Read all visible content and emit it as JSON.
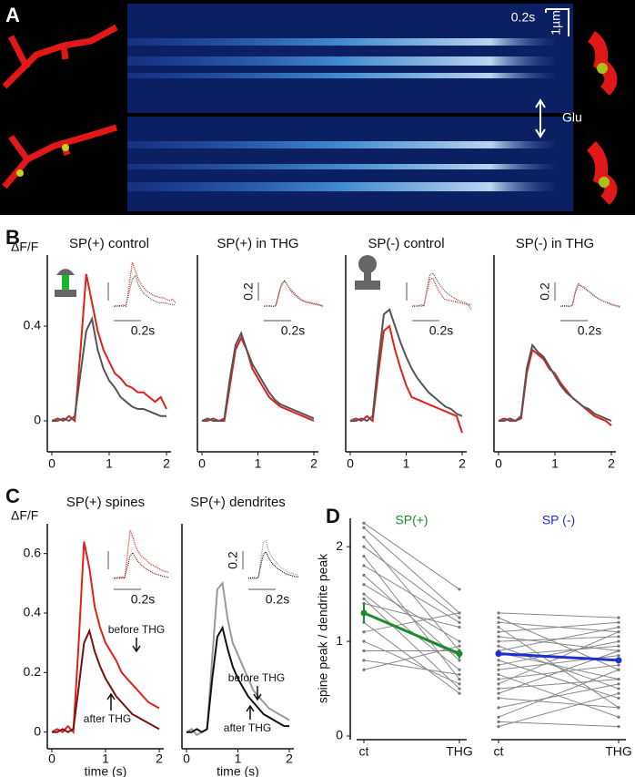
{
  "panel_labels": [
    "A",
    "B",
    "C",
    "D"
  ],
  "panel_a": {
    "time_scale": "0.2s",
    "length_scale": "1µm",
    "stimulus": "Glu"
  },
  "chart_data": [
    {
      "type": "line",
      "title": "SP(+) control",
      "ylabel": "ΔF/F",
      "x": [
        0,
        0.1,
        0.2,
        0.3,
        0.4,
        0.5,
        0.6,
        0.7,
        0.8,
        0.9,
        1,
        1.1,
        1.2,
        1.3,
        1.4,
        1.5,
        1.6,
        1.7,
        1.8,
        1.9,
        2
      ],
      "series": [
        {
          "color": "#e0201b",
          "values": [
            0,
            0.01,
            0,
            0.02,
            0,
            0.3,
            0.62,
            0.5,
            0.38,
            0.3,
            0.25,
            0.2,
            0.18,
            0.15,
            0.14,
            0.12,
            0.12,
            0.1,
            0.08,
            0.1,
            0.05
          ]
        },
        {
          "color": "#555555",
          "values": [
            0,
            0,
            0.01,
            0,
            0.02,
            0.2,
            0.38,
            0.43,
            0.3,
            0.22,
            0.17,
            0.14,
            0.1,
            0.08,
            0.06,
            0.05,
            0.05,
            0.04,
            0.03,
            0.02,
            0.02
          ]
        }
      ],
      "xlim": [
        0,
        2
      ],
      "xticks": [
        0,
        1,
        2
      ],
      "ylim": [
        -0.1,
        0.7
      ],
      "yticks": [
        0,
        0.4
      ],
      "inset": {
        "x_scale": "0.2s"
      }
    },
    {
      "type": "line",
      "title": "SP(+) in THG",
      "x": [
        0,
        0.1,
        0.2,
        0.3,
        0.4,
        0.5,
        0.6,
        0.7,
        0.8,
        0.9,
        1,
        1.1,
        1.2,
        1.3,
        1.4,
        1.5,
        1.6,
        1.7,
        1.8,
        1.9,
        2
      ],
      "series": [
        {
          "color": "#e0201b",
          "values": [
            0,
            0,
            0.01,
            0,
            0,
            0.15,
            0.3,
            0.35,
            0.3,
            0.22,
            0.18,
            0.14,
            0.1,
            0.08,
            0.06,
            0.05,
            0.04,
            0.03,
            0.02,
            0.01,
            0
          ]
        },
        {
          "color": "#555555",
          "values": [
            0,
            0.01,
            0,
            0,
            0.01,
            0.18,
            0.32,
            0.37,
            0.3,
            0.24,
            0.2,
            0.16,
            0.12,
            0.09,
            0.07,
            0.06,
            0.05,
            0.04,
            0.03,
            0.02,
            0.01
          ]
        }
      ],
      "xlim": [
        0,
        2
      ],
      "xticks": [
        0,
        1,
        2
      ],
      "ylim": [
        -0.1,
        0.7
      ],
      "inset": {
        "y_scale": "0.2",
        "x_scale": "0.2s"
      }
    },
    {
      "type": "line",
      "title": "SP(-) control",
      "x": [
        0,
        0.1,
        0.2,
        0.3,
        0.4,
        0.5,
        0.6,
        0.7,
        0.8,
        0.9,
        1,
        1.1,
        1.2,
        1.3,
        1.4,
        1.5,
        1.6,
        1.7,
        1.8,
        1.9,
        2
      ],
      "series": [
        {
          "color": "#e0201b",
          "values": [
            0,
            0.01,
            0,
            0.02,
            0,
            0.2,
            0.38,
            0.4,
            0.3,
            0.22,
            0.15,
            0.1,
            0.09,
            0.08,
            0.07,
            0.06,
            0.05,
            0.04,
            0.03,
            0.02,
            -0.05
          ]
        },
        {
          "color": "#555555",
          "values": [
            0,
            0,
            0.01,
            0,
            0.02,
            0.25,
            0.45,
            0.47,
            0.4,
            0.33,
            0.27,
            0.22,
            0.18,
            0.15,
            0.12,
            0.1,
            0.08,
            0.06,
            0.05,
            0.03,
            0.02
          ]
        }
      ],
      "xlim": [
        0,
        2
      ],
      "xticks": [
        0,
        1,
        2
      ],
      "ylim": [
        -0.1,
        0.7
      ],
      "inset": {
        "x_scale": "0.2s"
      }
    },
    {
      "type": "line",
      "title": "SP(-) in THG",
      "x": [
        0,
        0.1,
        0.2,
        0.3,
        0.4,
        0.5,
        0.6,
        0.7,
        0.8,
        0.9,
        1,
        1.1,
        1.2,
        1.3,
        1.4,
        1.5,
        1.6,
        1.7,
        1.8,
        1.9,
        2
      ],
      "series": [
        {
          "color": "#e0201b",
          "values": [
            0,
            0.01,
            0,
            0,
            0.01,
            0.2,
            0.3,
            0.28,
            0.26,
            0.22,
            0.2,
            0.16,
            0.13,
            0.1,
            0.08,
            0.06,
            0.04,
            0.02,
            0.01,
            0,
            -0.02
          ]
        },
        {
          "color": "#555555",
          "values": [
            0,
            0,
            0.01,
            0,
            0.02,
            0.22,
            0.32,
            0.29,
            0.27,
            0.23,
            0.19,
            0.15,
            0.12,
            0.1,
            0.08,
            0.06,
            0.05,
            0.03,
            0.02,
            0.01,
            0
          ]
        }
      ],
      "xlim": [
        0,
        2
      ],
      "xticks": [
        0,
        1,
        2
      ],
      "ylim": [
        -0.1,
        0.7
      ],
      "inset": {
        "y_scale": "0.2",
        "x_scale": "0.2s"
      }
    },
    {
      "type": "line",
      "title": "SP(+) spines",
      "ylabel": "ΔF/F",
      "xlabel": "time (s)",
      "x": [
        0,
        0.1,
        0.2,
        0.3,
        0.4,
        0.5,
        0.6,
        0.7,
        0.8,
        0.9,
        1,
        1.1,
        1.2,
        1.3,
        1.4,
        1.5,
        1.6,
        1.7,
        1.8,
        1.9,
        2
      ],
      "series": [
        {
          "name": "before THG",
          "color": "#e0201b",
          "values": [
            0,
            0.01,
            0,
            0.02,
            0,
            0.3,
            0.64,
            0.55,
            0.42,
            0.35,
            0.3,
            0.27,
            0.24,
            0.2,
            0.18,
            0.16,
            0.14,
            0.12,
            0.1,
            0.09,
            0.08
          ]
        },
        {
          "name": "after THG",
          "color": "#7a1010",
          "values": [
            0,
            0,
            0.01,
            0,
            0.01,
            0.15,
            0.3,
            0.34,
            0.27,
            0.22,
            0.18,
            0.15,
            0.12,
            0.1,
            0.08,
            0.06,
            0.05,
            0.04,
            0.03,
            0.02,
            0.01
          ]
        }
      ],
      "xlim": [
        0,
        2
      ],
      "xticks": [
        0,
        1,
        2
      ],
      "ylim": [
        -0.05,
        0.7
      ],
      "yticks": [
        0,
        0.2,
        0.4,
        0.6
      ],
      "inset": {
        "x_scale": "0.2s"
      }
    },
    {
      "type": "line",
      "title": "SP(+) dendrites",
      "xlabel": "time (s)",
      "x": [
        0,
        0.1,
        0.2,
        0.3,
        0.4,
        0.5,
        0.6,
        0.7,
        0.8,
        0.9,
        1,
        1.1,
        1.2,
        1.3,
        1.4,
        1.5,
        1.6,
        1.7,
        1.8,
        1.9,
        2
      ],
      "series": [
        {
          "name": "before THG",
          "color": "#999999",
          "values": [
            0,
            0.01,
            -0.01,
            0,
            0.01,
            0.25,
            0.48,
            0.5,
            0.38,
            0.3,
            0.26,
            0.22,
            0.18,
            0.14,
            0.12,
            0.1,
            0.08,
            0.07,
            0.06,
            0.05,
            0.04
          ]
        },
        {
          "name": "after THG",
          "color": "#111111",
          "values": [
            0,
            0,
            0.01,
            0,
            0.01,
            0.18,
            0.32,
            0.35,
            0.28,
            0.22,
            0.18,
            0.15,
            0.12,
            0.1,
            0.08,
            0.06,
            0.05,
            0.04,
            0.03,
            0.02,
            0.02
          ]
        }
      ],
      "xlim": [
        0,
        2
      ],
      "xticks": [
        0,
        1,
        2
      ],
      "ylim": [
        -0.05,
        0.7
      ],
      "inset": {
        "y_scale": "0.2",
        "x_scale": "0.2s"
      }
    },
    {
      "type": "paired",
      "ylabel": "spine peak / dendrite peak",
      "ylim": [
        0,
        2.3
      ],
      "yticks": [
        0,
        1,
        2
      ],
      "groups": [
        {
          "name": "SP(+)",
          "color": "#1e8a2e",
          "categories": [
            "ct",
            "THG"
          ],
          "mean": [
            1.3,
            0.87
          ],
          "error": [
            0.1,
            0.05
          ],
          "pairs": [
            [
              2.25,
              1.55
            ],
            [
              2.2,
              1.3
            ],
            [
              2.1,
              0.9
            ],
            [
              2.0,
              1.25
            ],
            [
              1.9,
              0.6
            ],
            [
              1.8,
              1.2
            ],
            [
              1.7,
              0.8
            ],
            [
              1.6,
              1.0
            ],
            [
              1.5,
              0.7
            ],
            [
              1.45,
              0.5
            ],
            [
              1.4,
              1.15
            ],
            [
              1.3,
              0.85
            ],
            [
              1.2,
              0.45
            ],
            [
              1.1,
              1.3
            ],
            [
              1.0,
              0.55
            ],
            [
              0.9,
              0.9
            ],
            [
              0.8,
              0.65
            ],
            [
              0.7,
              0.95
            ]
          ]
        },
        {
          "name": "SP (-)",
          "color": "#1f2fd0",
          "categories": [
            "ct",
            "THG"
          ],
          "mean": [
            0.87,
            0.8
          ],
          "error": [
            0.03,
            0.03
          ],
          "pairs": [
            [
              1.3,
              1.25
            ],
            [
              1.25,
              0.7
            ],
            [
              1.2,
              1.1
            ],
            [
              1.15,
              0.3
            ],
            [
              1.1,
              1.2
            ],
            [
              1.05,
              0.9
            ],
            [
              1.0,
              1.05
            ],
            [
              0.95,
              0.5
            ],
            [
              0.9,
              1.15
            ],
            [
              0.88,
              0.6
            ],
            [
              0.85,
              0.95
            ],
            [
              0.8,
              0.4
            ],
            [
              0.75,
              1.0
            ],
            [
              0.7,
              0.85
            ],
            [
              0.65,
              0.2
            ],
            [
              0.6,
              0.75
            ],
            [
              0.55,
              1.1
            ],
            [
              0.5,
              0.6
            ],
            [
              0.45,
              0.9
            ],
            [
              0.4,
              0.3
            ],
            [
              0.3,
              0.55
            ],
            [
              0.2,
              0.7
            ],
            [
              0.15,
              0.1
            ],
            [
              0.1,
              0.45
            ]
          ]
        }
      ]
    }
  ]
}
